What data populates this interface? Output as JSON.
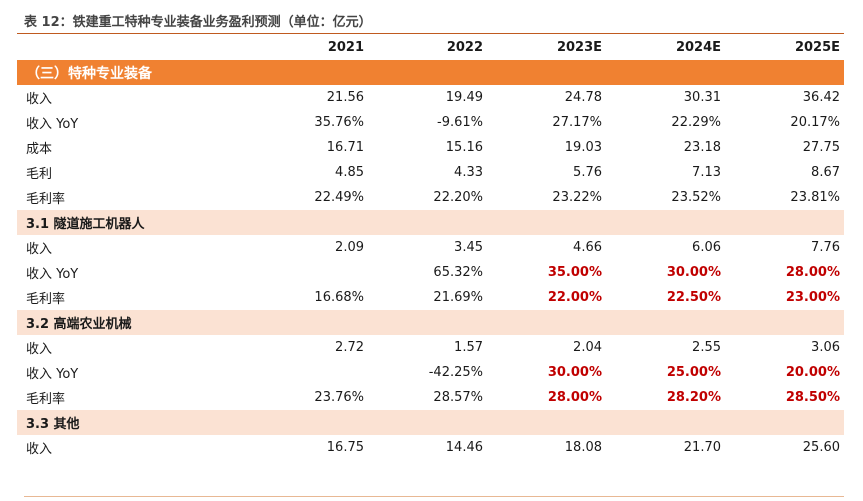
{
  "caption": "表 12：铁建重工特种专业装备业务盈利预测（单位：亿元）",
  "columns": [
    "2021",
    "2022",
    "2023E",
    "2024E",
    "2025E"
  ],
  "section_main": {
    "label": "（三）特种专业装备"
  },
  "main_rows": [
    {
      "label": "收入",
      "values": [
        "21.56",
        "19.49",
        "24.78",
        "30.31",
        "36.42"
      ]
    },
    {
      "label": "收入 YoY",
      "values": [
        "35.76%",
        "-9.61%",
        "27.17%",
        "22.29%",
        "20.17%"
      ]
    },
    {
      "label": "成本",
      "values": [
        "16.71",
        "15.16",
        "19.03",
        "23.18",
        "27.75"
      ]
    },
    {
      "label": "毛利",
      "values": [
        "4.85",
        "4.33",
        "5.76",
        "7.13",
        "8.67"
      ]
    },
    {
      "label": "毛利率",
      "values": [
        "22.49%",
        "22.20%",
        "23.22%",
        "23.52%",
        "23.81%"
      ]
    }
  ],
  "sub1": {
    "label": "3.1  隧道施工机器人",
    "rows": [
      {
        "label": "收入",
        "values": [
          "2.09",
          "3.45",
          "4.66",
          "6.06",
          "7.76"
        ]
      },
      {
        "label": "收入 YoY",
        "values": [
          "",
          "65.32%",
          "35.00%",
          "30.00%",
          "28.00%"
        ]
      },
      {
        "label": "毛利率",
        "values": [
          "16.68%",
          "21.69%",
          "22.00%",
          "22.50%",
          "23.00%"
        ]
      }
    ]
  },
  "sub2": {
    "label": "3.2  高端农业机械",
    "rows": [
      {
        "label": "收入",
        "values": [
          "2.72",
          "1.57",
          "2.04",
          "2.55",
          "3.06"
        ]
      },
      {
        "label": "收入 YoY",
        "values": [
          "",
          "-42.25%",
          "30.00%",
          "25.00%",
          "20.00%"
        ]
      },
      {
        "label": "毛利率",
        "values": [
          "23.76%",
          "28.57%",
          "28.00%",
          "28.20%",
          "28.50%"
        ]
      }
    ]
  },
  "sub3": {
    "label": "3.3  其他",
    "rows": [
      {
        "label": "收入",
        "values": [
          "16.75",
          "14.46",
          "18.08",
          "21.70",
          "25.60"
        ]
      }
    ]
  },
  "colors": {
    "section_orange": "#f08131",
    "section_pink": "#fbe2d3",
    "assumption_red": "#c00000"
  }
}
